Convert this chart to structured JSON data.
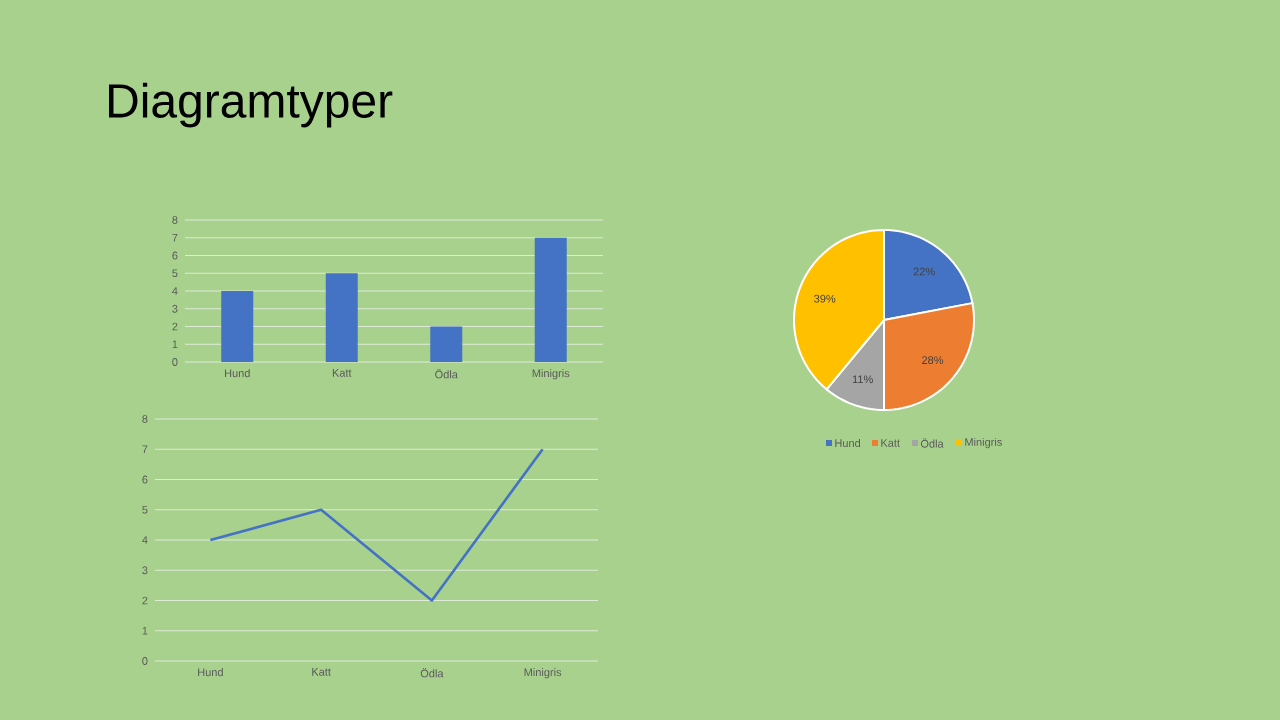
{
  "chart_data": [
    {
      "type": "bar",
      "title": "Diagramtyper",
      "categories": [
        "Hund",
        "Katt",
        "Ödla",
        "Minigris"
      ],
      "values": [
        4,
        5,
        2,
        7
      ],
      "color": "#4472c4",
      "ylim": [
        0,
        8
      ],
      "yticks": [
        0,
        1,
        2,
        3,
        4,
        5,
        6,
        7,
        8
      ],
      "grid": "y"
    },
    {
      "type": "line",
      "categories": [
        "Hund",
        "Katt",
        "Ödla",
        "Minigris"
      ],
      "values": [
        4,
        5,
        2,
        7
      ],
      "color": "#4472c4",
      "ylim": [
        0,
        8
      ],
      "yticks": [
        0,
        1,
        2,
        3,
        4,
        5,
        6,
        7,
        8
      ],
      "grid": "y"
    },
    {
      "type": "pie",
      "categories": [
        "Hund",
        "Katt",
        "Ödla",
        "Minigris"
      ],
      "values": [
        22,
        28,
        11,
        39
      ],
      "colors": [
        "#4472c4",
        "#ed7d31",
        "#a5a5a5",
        "#ffc000"
      ],
      "value_labels": [
        "22%",
        "28%",
        "11%",
        "39%"
      ],
      "legend": "bottom"
    }
  ]
}
